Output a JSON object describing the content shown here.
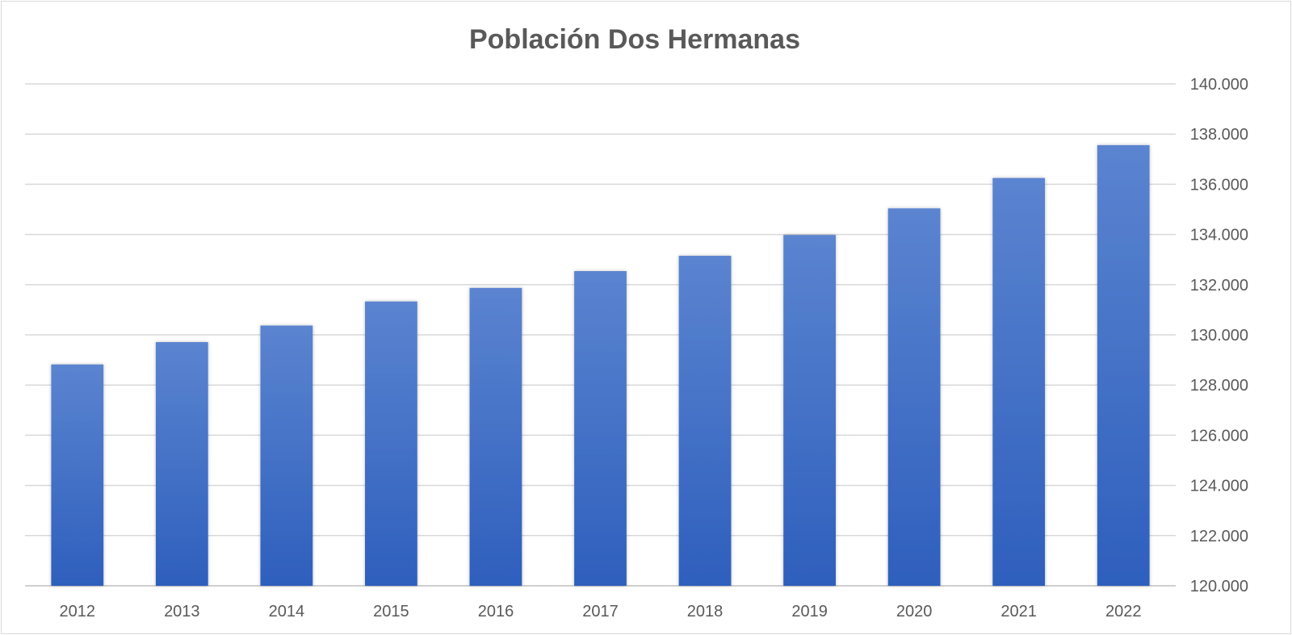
{
  "chart_data": {
    "type": "bar",
    "title": "Población Dos Hermanas",
    "xlabel": "",
    "ylabel": "",
    "categories": [
      "2012",
      "2013",
      "2014",
      "2015",
      "2016",
      "2017",
      "2018",
      "2019",
      "2020",
      "2021",
      "2022"
    ],
    "values": [
      128820,
      129710,
      130370,
      131330,
      131870,
      132540,
      133150,
      133980,
      135040,
      136250,
      137560
    ],
    "ylim": [
      120000,
      140000
    ],
    "y_ticks": [
      120000,
      122000,
      124000,
      126000,
      128000,
      130000,
      132000,
      134000,
      136000,
      138000,
      140000
    ],
    "y_tick_labels": [
      "120.000",
      "122.000",
      "124.000",
      "126.000",
      "128.000",
      "130.000",
      "132.000",
      "134.000",
      "136.000",
      "138.000",
      "140.000"
    ],
    "y_axis_side": "right",
    "grid": true,
    "legend": "none",
    "bar_color_top": "#5b84d0",
    "bar_color_bottom": "#2e5fbd"
  }
}
